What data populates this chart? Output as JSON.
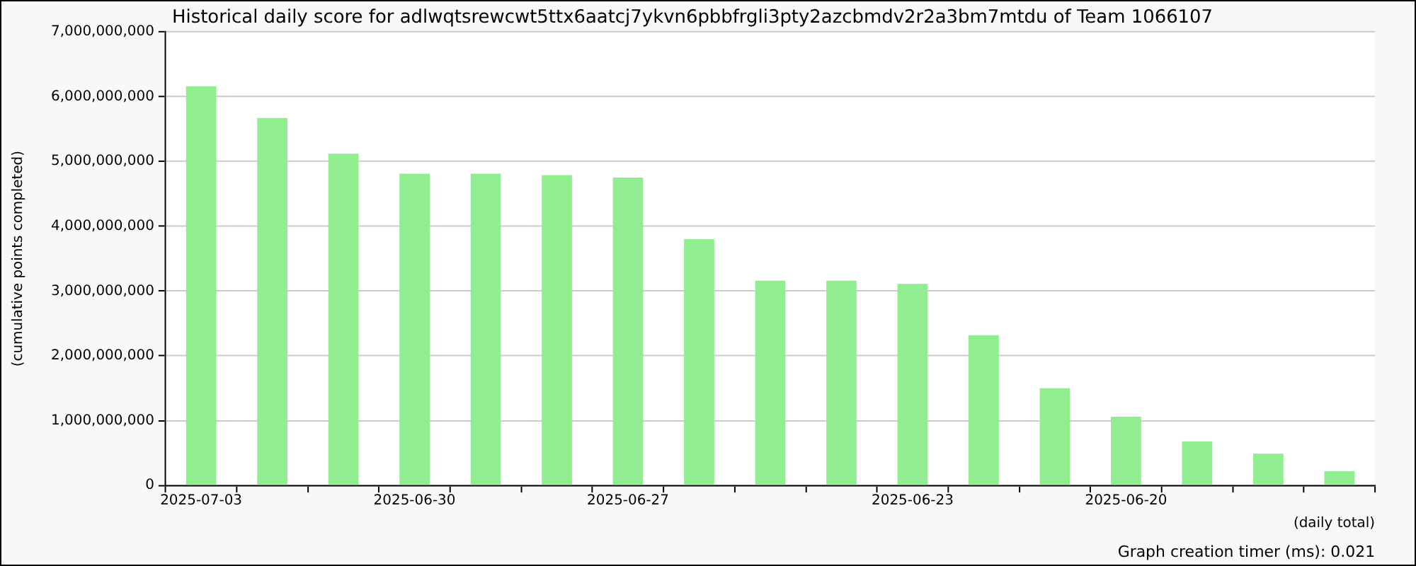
{
  "chart_data": {
    "type": "bar",
    "title": "Historical daily score for adlwqtsrewcwt5ttx6aatcj7ykvn6pbbfrgli3pty2azcbmdv2r2a3bm7mtdu of Team 1066107",
    "xlabel": "(daily total)",
    "ylabel": "(cumulative points completed)",
    "annotations": [
      "Graph creation timer (ms): 0.021"
    ],
    "categories": [
      "2025-07-03",
      null,
      null,
      "2025-06-30",
      null,
      null,
      "2025-06-27",
      null,
      null,
      null,
      "2025-06-23",
      null,
      null,
      "2025-06-20",
      null,
      null,
      null
    ],
    "values": [
      6160000000,
      5670000000,
      5120000000,
      4810000000,
      4810000000,
      4790000000,
      4750000000,
      3800000000,
      3160000000,
      3160000000,
      3110000000,
      2320000000,
      1500000000,
      1060000000,
      680000000,
      490000000,
      220000000
    ],
    "color": "#90ee90",
    "ylim": [
      0,
      7000000000
    ],
    "yticks": [
      0,
      {
        "value": 1000000000,
        "label": "1,000,000,000"
      },
      {
        "value": 2000000000,
        "label": "2,000,000,000"
      },
      {
        "value": 3000000000,
        "label": "3,000,000,000"
      },
      {
        "value": 4000000000,
        "label": "4,000,000,000"
      },
      {
        "value": 5000000000,
        "label": "5,000,000,000"
      },
      {
        "value": 6000000000,
        "label": "6,000,000,000"
      },
      {
        "value": 7000000000,
        "label": "7,000,000,000"
      }
    ],
    "grid": "y",
    "legend": false
  }
}
